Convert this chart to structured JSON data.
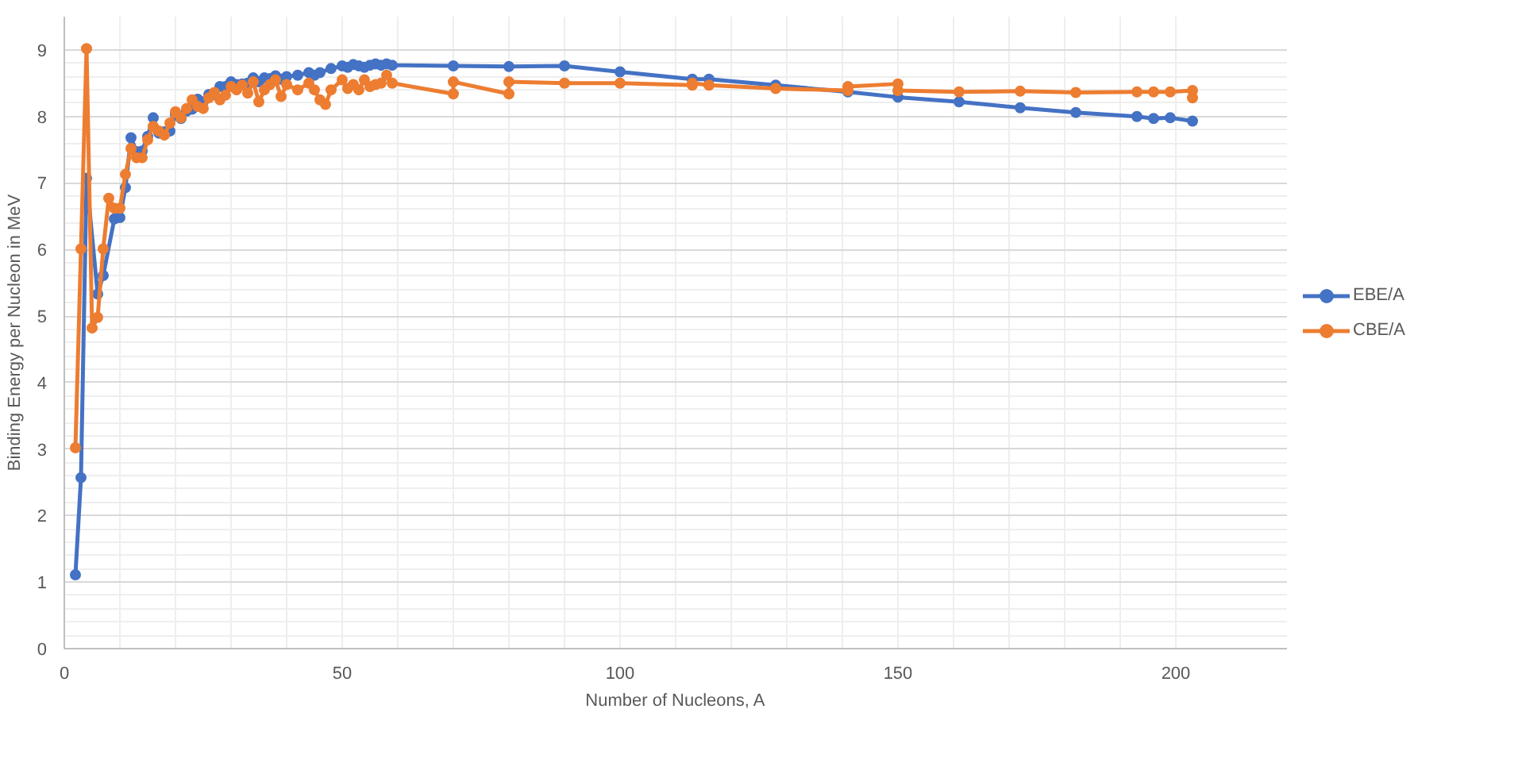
{
  "chart_data": {
    "type": "line",
    "xlabel": "Number of Nucleons, A",
    "ylabel": "Binding Energy per Nucleon in MeV",
    "xlim": [
      0,
      220
    ],
    "xticks": [
      0,
      50,
      100,
      150,
      200
    ],
    "ylim": [
      0,
      9.5
    ],
    "yticks": [
      0,
      1,
      2,
      3,
      4,
      5,
      6,
      7,
      8,
      9
    ],
    "grid": true,
    "legend": "right",
    "marker": "circle",
    "line_style": "solid",
    "series": [
      {
        "name": "EBE/A",
        "color": "#4472c4",
        "x": [
          2,
          3,
          4,
          6,
          7,
          9,
          10,
          11,
          12,
          13,
          14,
          15,
          16,
          17,
          18,
          19,
          20,
          21,
          22,
          23,
          24,
          25,
          26,
          27,
          28,
          29,
          30,
          31,
          32,
          33,
          34,
          35,
          36,
          37,
          38,
          39,
          40,
          42,
          44,
          45,
          46,
          48,
          50,
          51,
          52,
          53,
          54,
          55,
          56,
          57,
          58,
          59,
          70,
          80,
          90,
          100,
          113,
          116,
          128,
          141,
          150,
          161,
          172,
          182,
          193,
          196,
          199,
          203
        ],
        "values": [
          1.11,
          2.57,
          7.07,
          5.33,
          5.61,
          6.46,
          6.48,
          6.93,
          7.68,
          7.47,
          7.48,
          7.7,
          7.98,
          7.75,
          7.77,
          7.78,
          8.03,
          7.97,
          8.08,
          8.11,
          8.26,
          8.22,
          8.33,
          8.33,
          8.45,
          8.45,
          8.52,
          8.48,
          8.49,
          8.5,
          8.58,
          8.52,
          8.58,
          8.57,
          8.61,
          8.56,
          8.6,
          8.62,
          8.66,
          8.62,
          8.66,
          8.72,
          8.76,
          8.74,
          8.78,
          8.76,
          8.74,
          8.77,
          8.79,
          8.77,
          8.79,
          8.77,
          8.76,
          8.75,
          8.76,
          8.67,
          8.56,
          8.56,
          8.47,
          8.37,
          8.29,
          8.22,
          8.13,
          8.06,
          8.0,
          7.97,
          7.98,
          7.93
        ]
      },
      {
        "name": "CBE/A",
        "color": "#ed7d31",
        "x": [
          2,
          3,
          4,
          5,
          6,
          7,
          8,
          9,
          10,
          11,
          12,
          13,
          14,
          15,
          16,
          17,
          18,
          19,
          20,
          21,
          22,
          23,
          24,
          25,
          26,
          27,
          28,
          29,
          30,
          31,
          32,
          33,
          34,
          35,
          36,
          37,
          38,
          39,
          40,
          42,
          44,
          45,
          46,
          47,
          48,
          50,
          51,
          52,
          53,
          54,
          55,
          56,
          57,
          58,
          59,
          70,
          70,
          80,
          80,
          90,
          100,
          113,
          113,
          116,
          128,
          141,
          141,
          150,
          150,
          161,
          172,
          182,
          193,
          196,
          199,
          203,
          203
        ],
        "values": [
          3.02,
          6.01,
          9.02,
          4.82,
          4.98,
          6.01,
          6.77,
          6.62,
          6.62,
          7.13,
          7.52,
          7.38,
          7.38,
          7.65,
          7.85,
          7.78,
          7.72,
          7.9,
          8.07,
          7.98,
          8.12,
          8.25,
          8.15,
          8.12,
          8.28,
          8.36,
          8.25,
          8.32,
          8.45,
          8.4,
          8.47,
          8.35,
          8.52,
          8.22,
          8.4,
          8.48,
          8.55,
          8.3,
          8.48,
          8.4,
          8.5,
          8.4,
          8.25,
          8.18,
          8.4,
          8.55,
          8.42,
          8.48,
          8.4,
          8.55,
          8.45,
          8.48,
          8.5,
          8.62,
          8.5,
          8.34,
          8.52,
          8.34,
          8.52,
          8.5,
          8.5,
          8.47,
          8.5,
          8.47,
          8.42,
          8.39,
          8.45,
          8.49,
          8.39,
          8.37,
          8.38,
          8.36,
          8.37,
          8.37,
          8.37,
          8.39,
          8.28
        ]
      }
    ]
  }
}
